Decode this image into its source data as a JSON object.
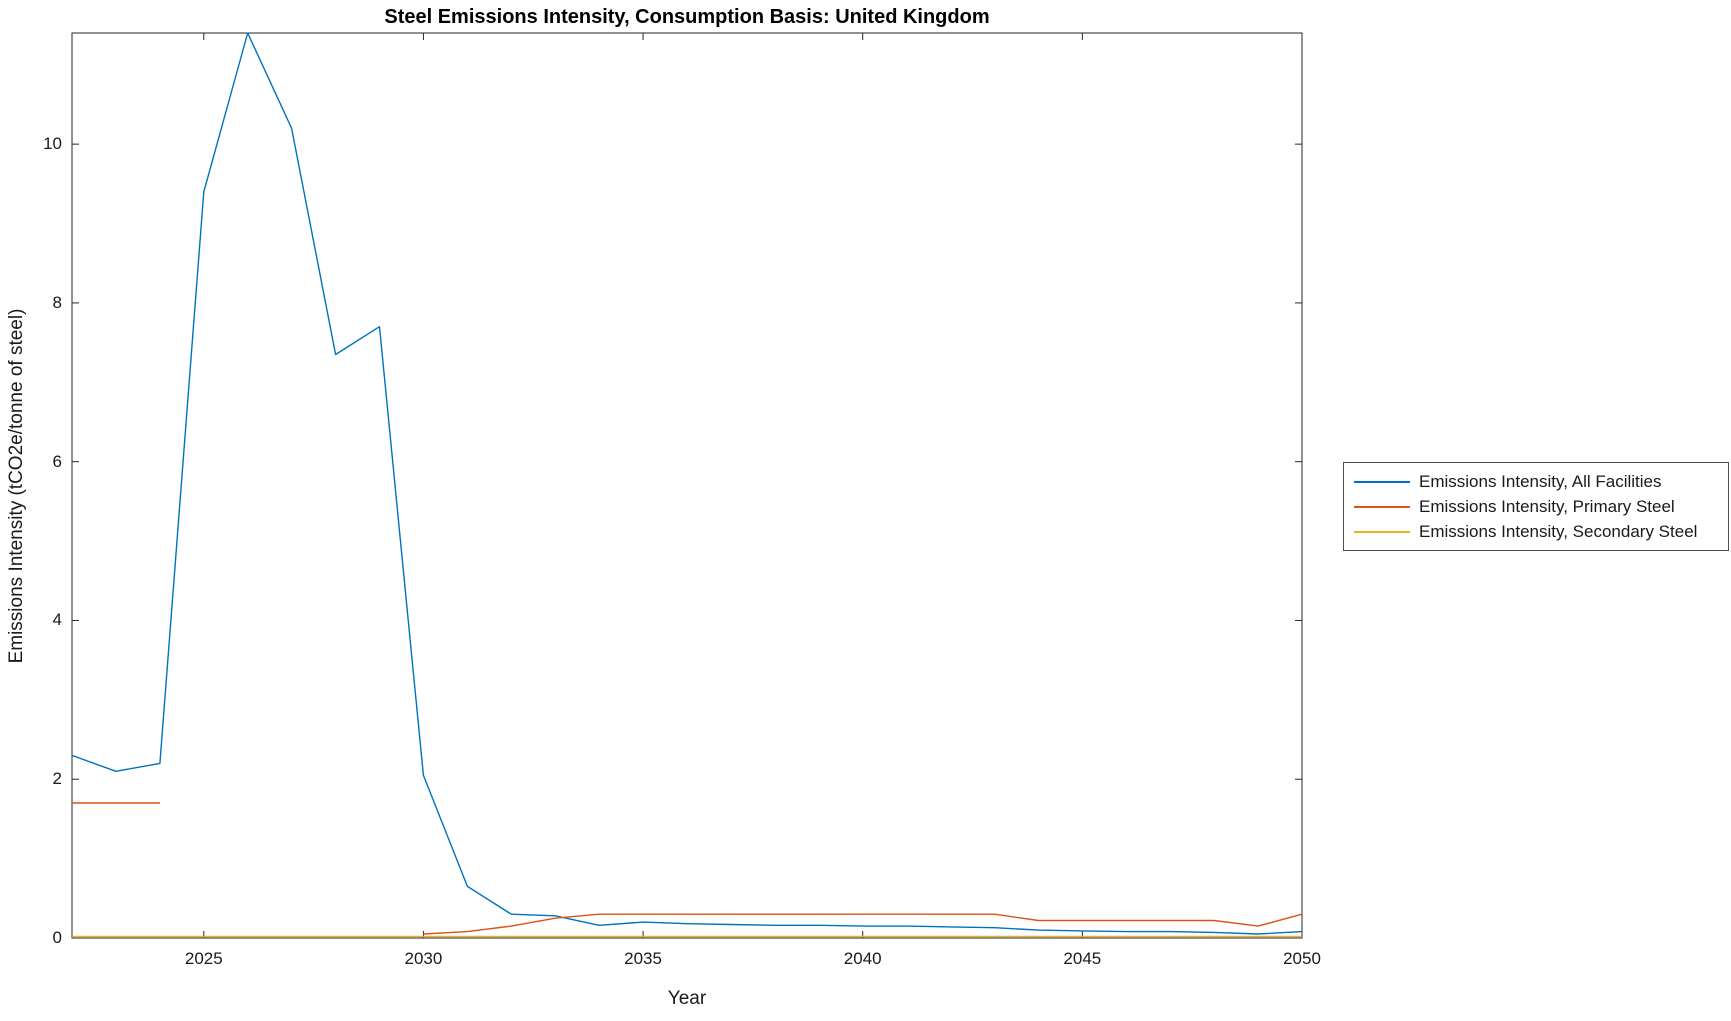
{
  "chart_data": {
    "type": "line",
    "title": "Steel Emissions Intensity, Consumption Basis: United Kingdom",
    "xlabel": "Year",
    "ylabel": "Emissions Intensity (tCO2e/tonne of steel)",
    "xlim": [
      2022,
      2050
    ],
    "ylim": [
      0,
      11.4
    ],
    "xticks": [
      2025,
      2030,
      2035,
      2040,
      2045,
      2050
    ],
    "yticks": [
      0,
      2,
      4,
      6,
      8,
      10
    ],
    "grid": false,
    "legend_position": "right-outside",
    "axis_color": "#262626",
    "x": [
      2022,
      2023,
      2024,
      2025,
      2026,
      2027,
      2028,
      2029,
      2030,
      2031,
      2032,
      2033,
      2034,
      2035,
      2036,
      2037,
      2038,
      2039,
      2040,
      2041,
      2042,
      2043,
      2044,
      2045,
      2046,
      2047,
      2048,
      2049,
      2050
    ],
    "series": [
      {
        "name": "Emissions Intensity, All Facilities",
        "color": "#0072BD",
        "values": [
          2.3,
          2.1,
          2.2,
          9.4,
          11.4,
          10.2,
          7.35,
          7.7,
          2.05,
          0.65,
          0.3,
          0.28,
          0.16,
          0.2,
          0.18,
          0.17,
          0.16,
          0.16,
          0.15,
          0.15,
          0.14,
          0.13,
          0.1,
          0.09,
          0.08,
          0.08,
          0.07,
          0.05,
          0.08
        ]
      },
      {
        "name": "Emissions Intensity, Primary Steel",
        "color": "#D95319",
        "values": [
          1.7,
          1.7,
          1.7,
          null,
          null,
          null,
          null,
          null,
          0.05,
          0.08,
          0.15,
          0.25,
          0.3,
          0.3,
          0.3,
          0.3,
          0.3,
          0.3,
          0.3,
          0.3,
          0.3,
          0.3,
          0.22,
          0.22,
          0.22,
          0.22,
          0.22,
          0.15,
          0.3
        ]
      },
      {
        "name": "Emissions Intensity, Secondary Steel",
        "color": "#EDB120",
        "values": [
          0.02,
          0.02,
          0.02,
          0.02,
          0.02,
          0.02,
          0.02,
          0.02,
          0.02,
          0.02,
          0.02,
          0.02,
          0.02,
          0.02,
          0.02,
          0.02,
          0.02,
          0.02,
          0.02,
          0.02,
          0.02,
          0.02,
          0.02,
          0.02,
          0.02,
          0.02,
          0.02,
          0.02,
          0.02
        ]
      }
    ]
  }
}
